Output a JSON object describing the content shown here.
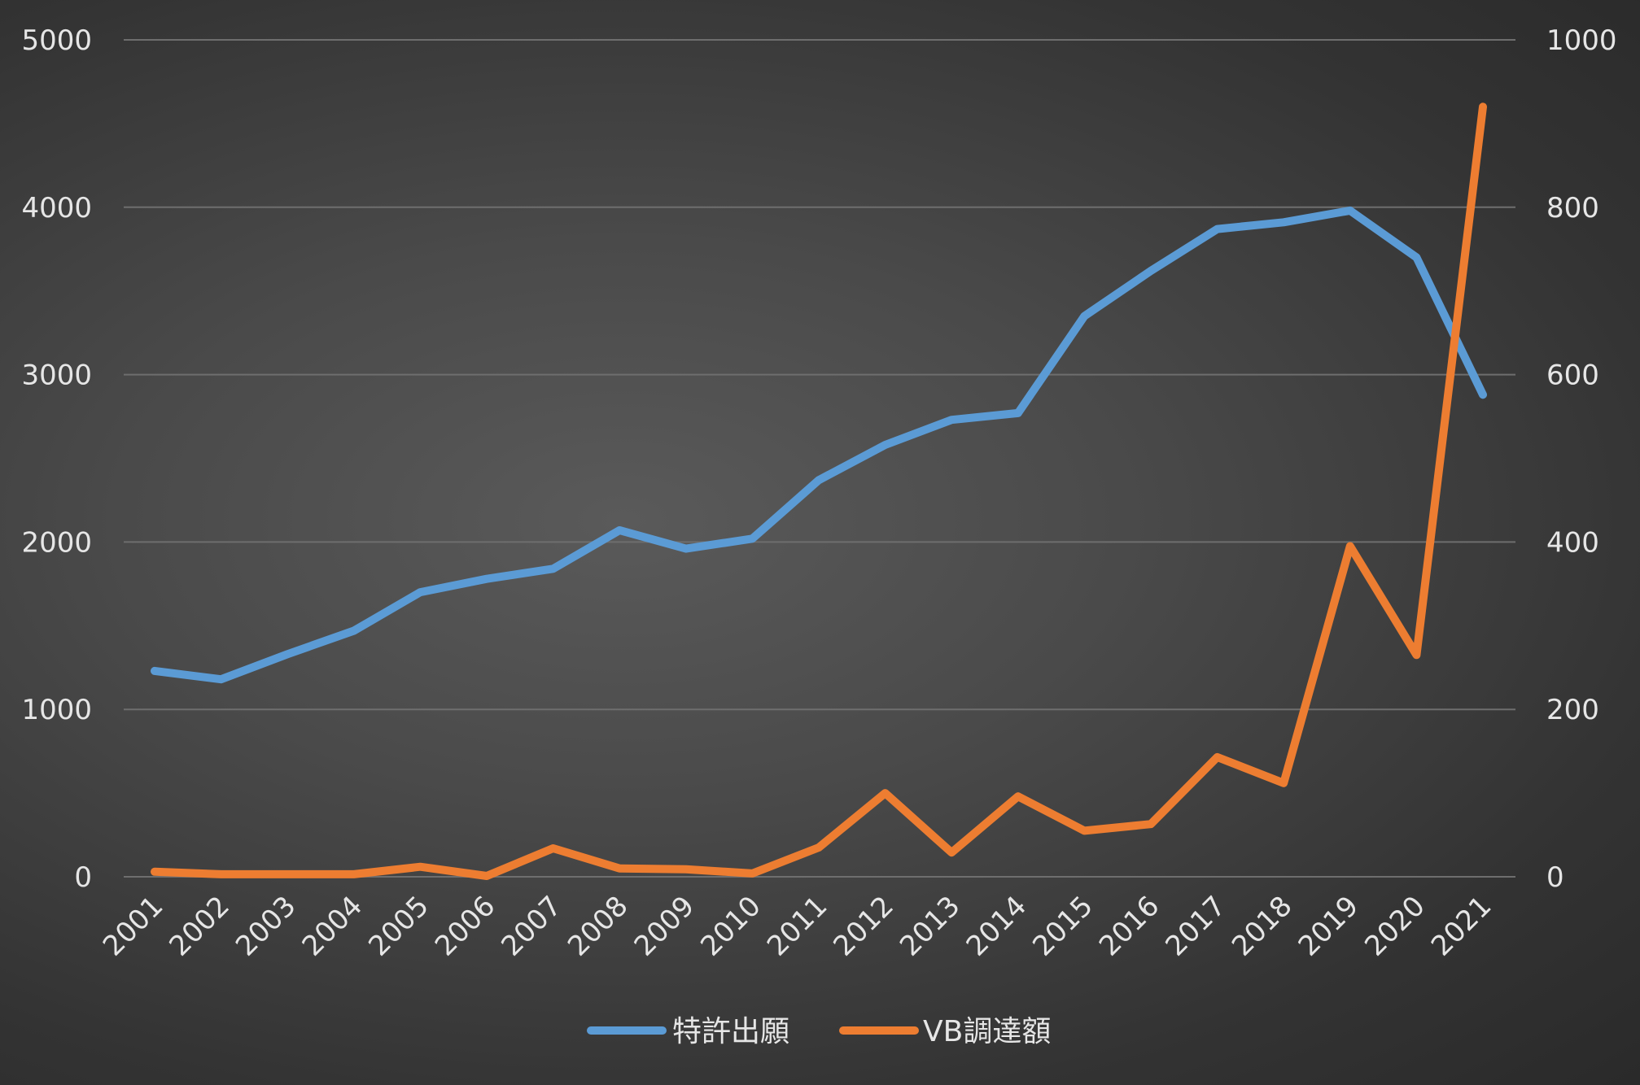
{
  "chart_data": {
    "type": "line",
    "title": "",
    "xlabel": "",
    "ylabel": "",
    "categories": [
      "2001",
      "2002",
      "2003",
      "2004",
      "2005",
      "2006",
      "2007",
      "2008",
      "2009",
      "2010",
      "2011",
      "2012",
      "2013",
      "2014",
      "2015",
      "2016",
      "2017",
      "2018",
      "2019",
      "2020",
      "2021"
    ],
    "y_left": {
      "range": [
        0,
        5000
      ],
      "ticks": [
        "0",
        "1000",
        "2000",
        "3000",
        "4000",
        "5000"
      ]
    },
    "y_right": {
      "range": [
        0,
        1000
      ],
      "ticks": [
        "0",
        "200",
        "400",
        "600",
        "800",
        "1000"
      ]
    },
    "grid": true,
    "legend_position": "bottom",
    "series": [
      {
        "name": "特許出願",
        "axis": "left",
        "color": "#5b9bd5",
        "values": [
          1230,
          1180,
          1330,
          1470,
          1700,
          1780,
          1840,
          2070,
          1960,
          2020,
          2370,
          2580,
          2730,
          2770,
          3350,
          3620,
          3870,
          3910,
          3980,
          3700,
          2880
        ]
      },
      {
        "name": "VB調達額",
        "axis": "right",
        "color": "#ed7d31",
        "values": [
          6,
          3,
          3,
          3,
          12,
          1,
          34,
          10,
          9,
          4,
          35,
          100,
          29,
          96,
          55,
          63,
          143,
          112,
          395,
          265,
          920
        ]
      }
    ]
  }
}
